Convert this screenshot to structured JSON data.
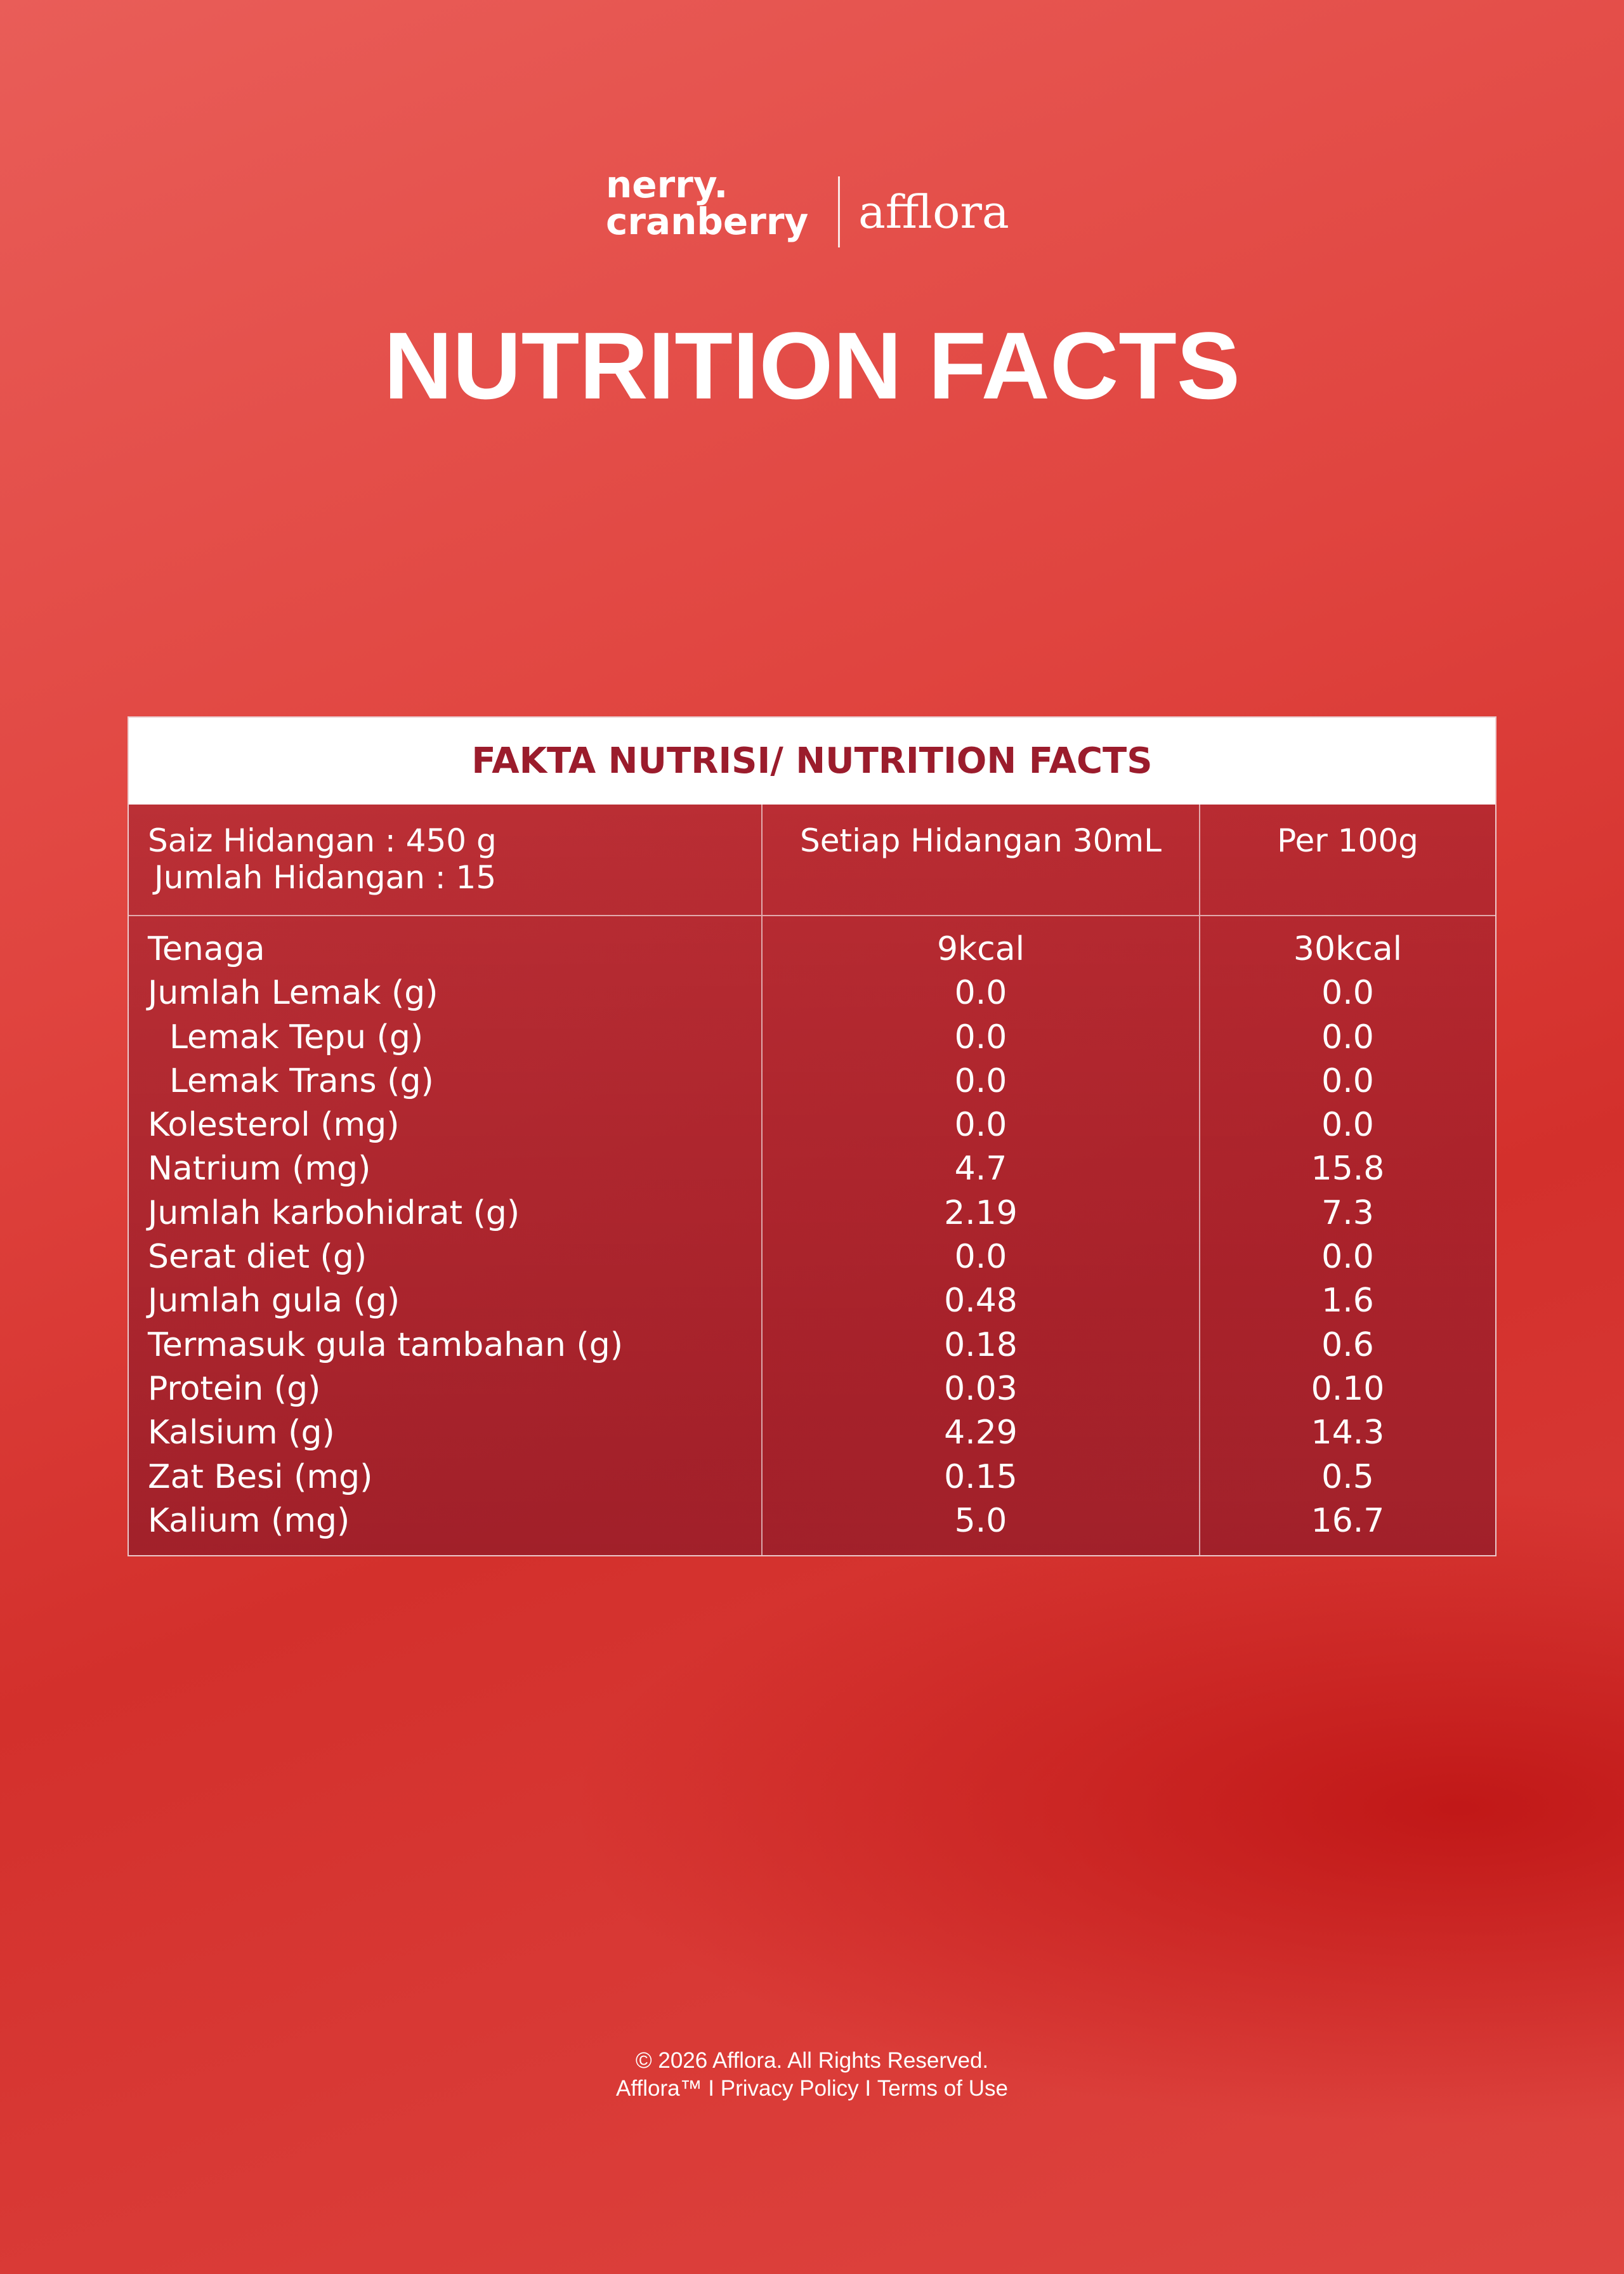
{
  "header": {
    "brand_line1": "nerry.",
    "brand_line2": "cranberry",
    "partner": "afflora",
    "title": "NUTRITION FACTS"
  },
  "table": {
    "title": "FAKTA NUTRISI/ NUTRITION FACTS",
    "columns": [
      [
        "Saiz Hidangan : 450 g",
        "Jumlah Hidangan : 15"
      ],
      "Setiap Hidangan 30mL",
      "Per 100g"
    ],
    "rows": [
      [
        "Tenaga",
        "9kcal",
        "30kcal"
      ],
      [
        "Jumlah Lemak (g)",
        "0.0",
        "0.0"
      ],
      [
        "Lemak Tepu (g)",
        "0.0",
        "0.0"
      ],
      [
        "Lemak Trans (g)",
        "0.0",
        "0.0"
      ],
      [
        "Kolesterol (mg)",
        "0.0",
        "0.0"
      ],
      [
        "Natrium (mg)",
        "4.7",
        "15.8"
      ],
      [
        "Jumlah karbohidrat (g)",
        "2.19",
        "7.3"
      ],
      [
        "Serat diet (g)",
        "0.0",
        "0.0"
      ],
      [
        "Jumlah gula (g)",
        "0.48",
        "1.6"
      ],
      [
        "Termasuk gula tambahan (g)",
        "0.18",
        "0.6"
      ],
      [
        "Protein (g)",
        "0.03",
        "0.10"
      ],
      [
        "Kalsium (g)",
        "4.29",
        "14.3"
      ],
      [
        "Zat Besi (mg)",
        "0.15",
        "0.5"
      ],
      [
        "Kalium (mg)",
        "5.0",
        "16.7"
      ]
    ]
  },
  "footer": {
    "copyright": "© 2026 Afflora. All Rights Reserved.",
    "links": [
      "Afflora™",
      "Privacy Policy",
      "Terms of Use"
    ]
  }
}
